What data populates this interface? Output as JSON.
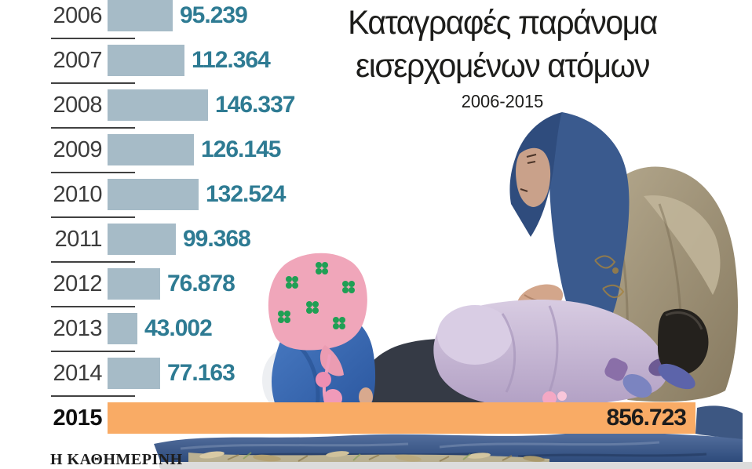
{
  "chart_data": {
    "type": "bar",
    "orientation": "horizontal",
    "title": "Καταγραφές παράνομα εισερχομένων ατόμων",
    "title_line1": "Καταγραφές παράνομα",
    "title_line2": "εισερχομένων ατόμων",
    "subtitle": "2006-2015",
    "categories": [
      "2006",
      "2007",
      "2008",
      "2009",
      "2010",
      "2011",
      "2012",
      "2013",
      "2014",
      "2015"
    ],
    "values": [
      95239,
      112364,
      146337,
      126145,
      132524,
      99368,
      76878,
      43002,
      77163,
      856723
    ],
    "value_labels": [
      "95.239",
      "112.364",
      "146.337",
      "126.145",
      "132.524",
      "99.368",
      "76.878",
      "43.002",
      "77.163",
      "856.723"
    ],
    "highlight_category": "2015",
    "max_value": 856723,
    "xlabel": "",
    "ylabel": "",
    "legend": "none",
    "grid": "off",
    "colors": {
      "bar": "#a6bbc7",
      "highlight_bar": "#f9ab65",
      "value_text": "#2e7b93",
      "highlight_value_text": "#1c1c1c",
      "year_text": "#3c3c3c",
      "separator": "#414141"
    }
  },
  "photo_palette": {
    "tarp_blue": "#3d5782",
    "headscarf_blue": "#3a5a8e",
    "coat_tan": "#a1947a",
    "child_lilac": "#c6b5d3",
    "toddler_hat_pink": "#f0a6ba",
    "toddler_flower_green": "#1f9f54",
    "toddler_jacket_blue": "#3a6cb4",
    "straw_tan": "#c9bb94"
  },
  "footer": {
    "brand": "Η ΚΑΘΗΜΕΡΙΝΗ"
  }
}
